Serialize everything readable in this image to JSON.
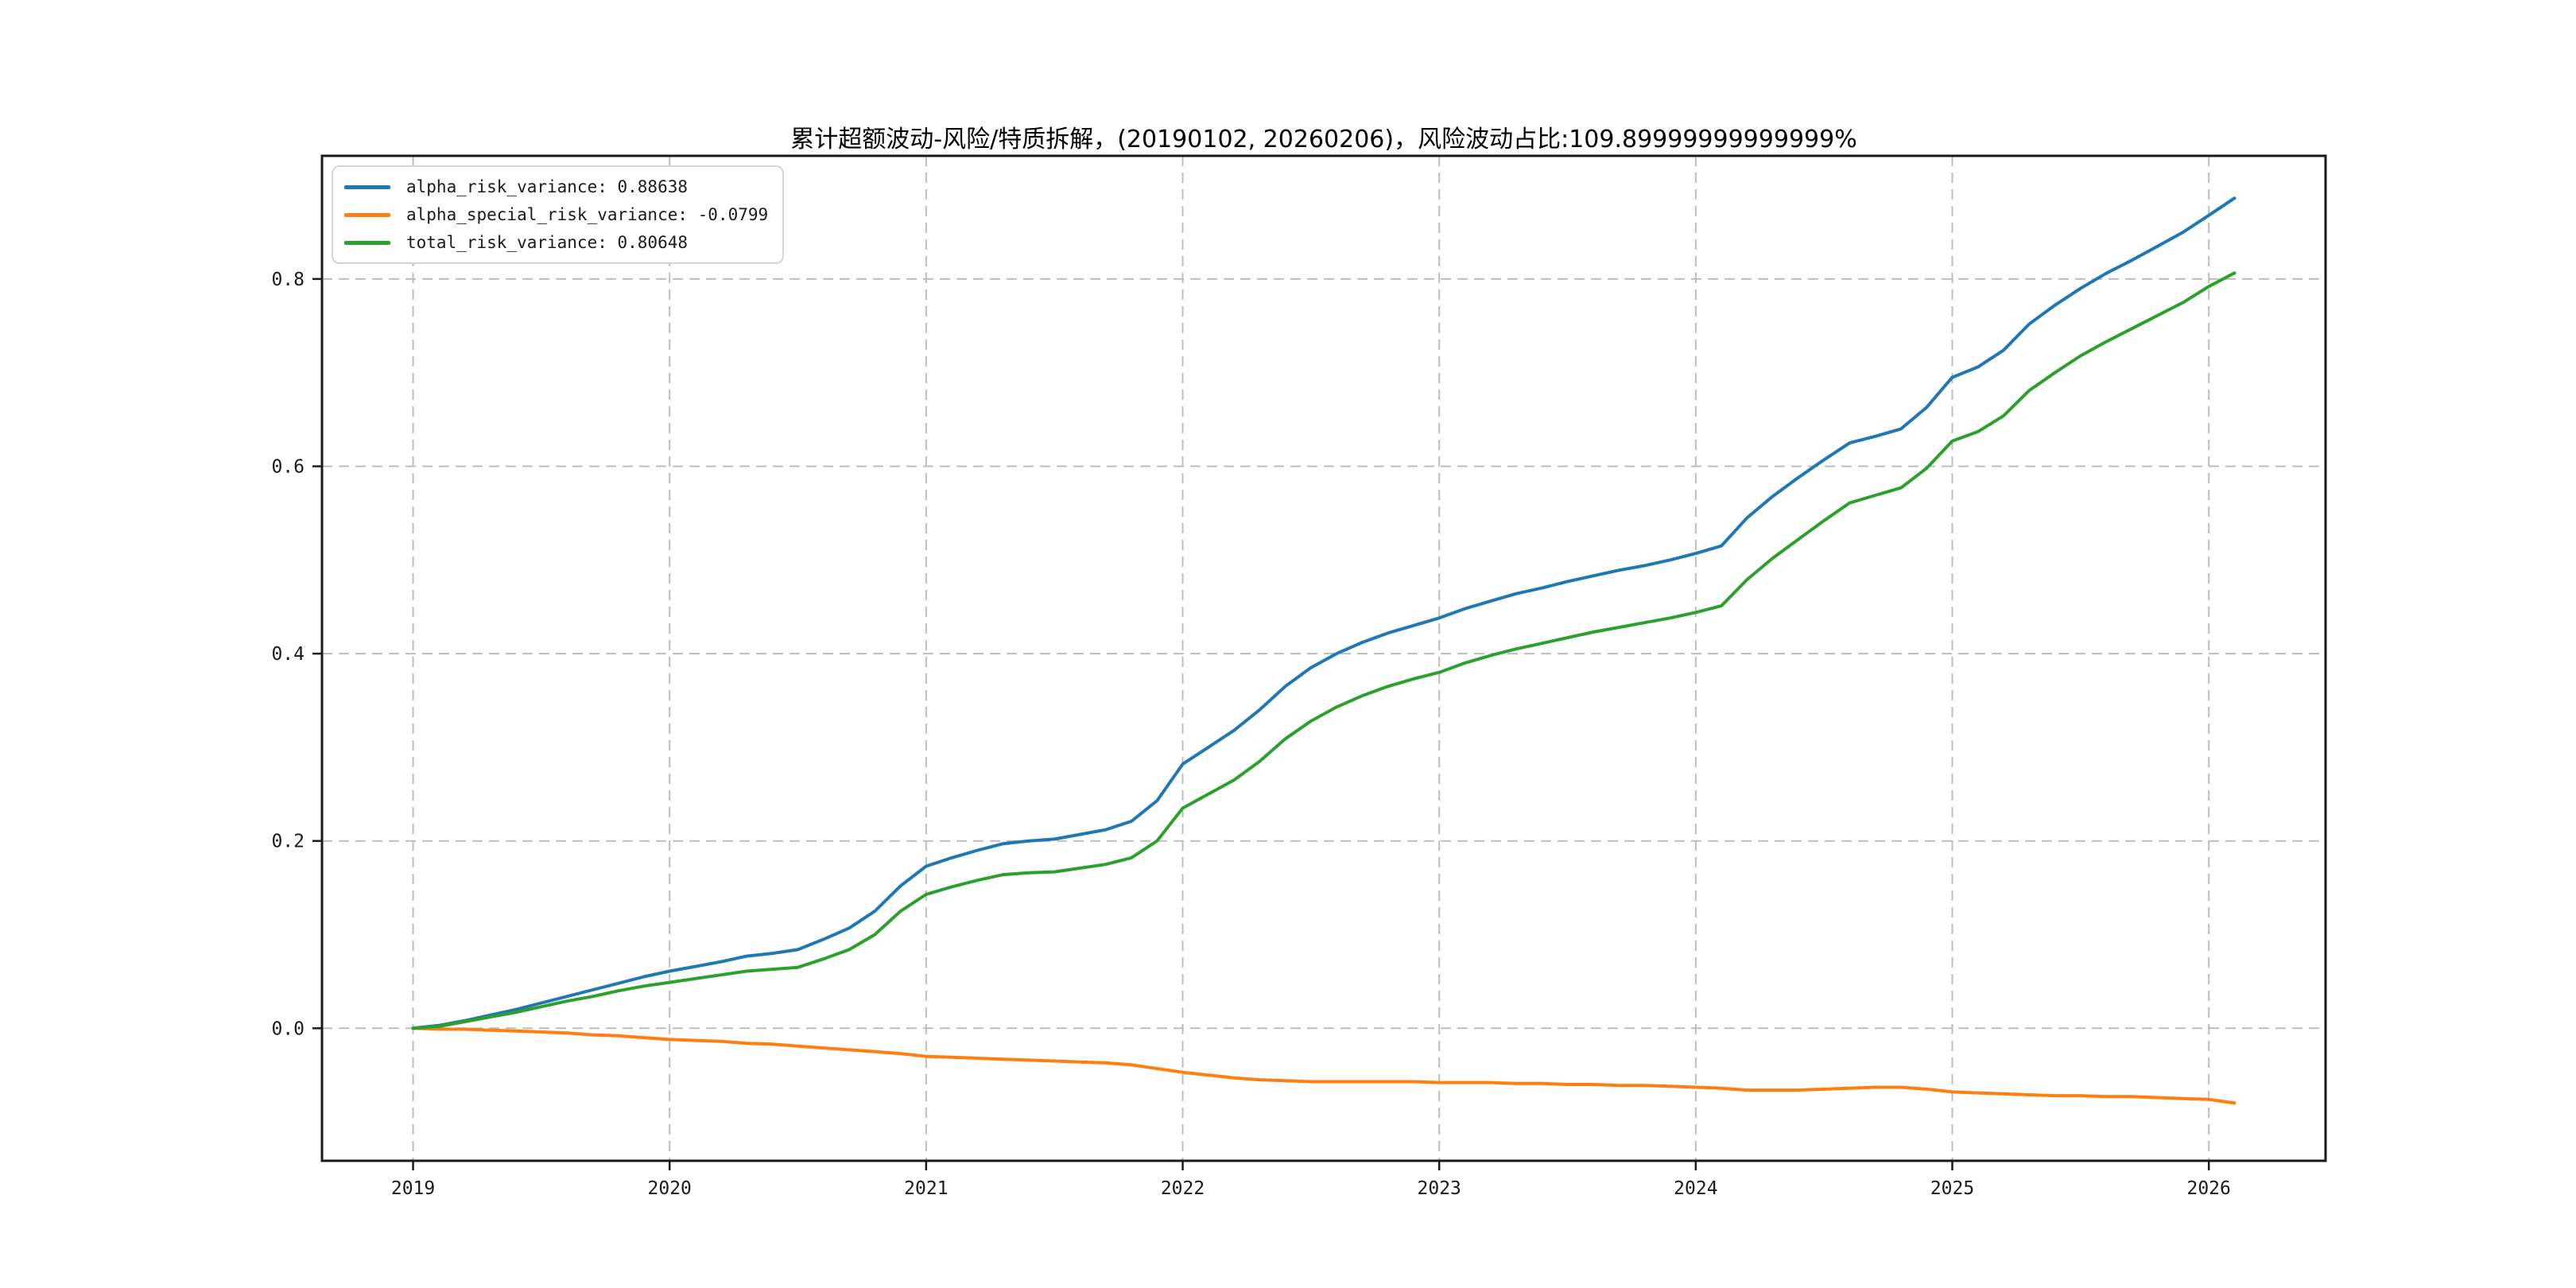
{
  "title": "累计超额波动-风险/特质拆解，(20190102, 20260206)，风险波动占比:109.89999999999999%",
  "legend": {
    "position": "upper left",
    "items": [
      {
        "text": "alpha_risk_variance: 0.88638",
        "color": "#1f77b4"
      },
      {
        "text": "alpha_special_risk_variance: -0.0799",
        "color": "#ff7f0e"
      },
      {
        "text": "total_risk_variance: 0.80648",
        "color": "#2ca02c"
      }
    ]
  },
  "colors": {
    "background": "#ffffff",
    "grid": "#bdbdbd",
    "spine": "#1a1a1a",
    "tick_label": "#1a1a1a"
  },
  "chart_data": {
    "type": "line",
    "title": "累计超额波动-风险/特质拆解，(20190102, 20260206)，风险波动占比:109.89999999999999%",
    "xlabel": "",
    "ylabel": "",
    "date_range_shown_in_title": [
      "20190102",
      "20260206"
    ],
    "x_ticks": [
      2019,
      2020,
      2021,
      2022,
      2023,
      2024,
      2025,
      2026
    ],
    "x_tick_labels": [
      "2019",
      "2020",
      "2021",
      "2022",
      "2023",
      "2024",
      "2025",
      "2026"
    ],
    "y_ticks": [
      0.0,
      0.2,
      0.4,
      0.6,
      0.8
    ],
    "y_tick_labels": [
      "0.0",
      "0.2",
      "0.4",
      "0.6",
      "0.8"
    ],
    "xlim": [
      2018.645,
      2026.455
    ],
    "ylim": [
      -0.1415,
      0.9315
    ],
    "grid": true,
    "grid_style": "dashed",
    "legend_position": "upper left",
    "x": [
      2019.0,
      2019.1,
      2019.2,
      2019.3,
      2019.4,
      2019.5,
      2019.6,
      2019.7,
      2019.8,
      2019.9,
      2020.0,
      2020.1,
      2020.2,
      2020.3,
      2020.4,
      2020.5,
      2020.6,
      2020.7,
      2020.8,
      2020.9,
      2021.0,
      2021.1,
      2021.2,
      2021.3,
      2021.4,
      2021.5,
      2021.6,
      2021.7,
      2021.8,
      2021.9,
      2022.0,
      2022.1,
      2022.2,
      2022.3,
      2022.4,
      2022.5,
      2022.6,
      2022.7,
      2022.8,
      2022.9,
      2023.0,
      2023.1,
      2023.2,
      2023.3,
      2023.4,
      2023.5,
      2023.6,
      2023.7,
      2023.8,
      2023.9,
      2024.0,
      2024.1,
      2024.2,
      2024.3,
      2024.4,
      2024.5,
      2024.6,
      2024.7,
      2024.8,
      2024.9,
      2025.0,
      2025.1,
      2025.2,
      2025.3,
      2025.4,
      2025.5,
      2025.6,
      2025.7,
      2025.8,
      2025.9,
      2026.0,
      2026.1
    ],
    "series": [
      {
        "name": "alpha_risk_variance",
        "final_value": 0.88638,
        "color": "#1f77b4",
        "values": [
          0.0,
          0.003,
          0.008,
          0.014,
          0.02,
          0.027,
          0.034,
          0.041,
          0.048,
          0.055,
          0.061,
          0.066,
          0.071,
          0.077,
          0.08,
          0.084,
          0.095,
          0.107,
          0.125,
          0.152,
          0.173,
          0.182,
          0.19,
          0.197,
          0.2,
          0.202,
          0.207,
          0.212,
          0.221,
          0.243,
          0.282,
          0.3,
          0.318,
          0.34,
          0.365,
          0.385,
          0.4,
          0.412,
          0.422,
          0.43,
          0.438,
          0.448,
          0.456,
          0.464,
          0.47,
          0.477,
          0.483,
          0.489,
          0.494,
          0.5,
          0.507,
          0.515,
          0.545,
          0.568,
          0.588,
          0.607,
          0.625,
          0.632,
          0.64,
          0.663,
          0.695,
          0.706,
          0.724,
          0.752,
          0.772,
          0.79,
          0.806,
          0.82,
          0.835,
          0.85,
          0.868,
          0.88638
        ]
      },
      {
        "name": "alpha_special_risk_variance",
        "final_value": -0.0799,
        "color": "#ff7f0e",
        "values": [
          0.0,
          -0.001,
          -0.001,
          -0.002,
          -0.003,
          -0.004,
          -0.005,
          -0.007,
          -0.008,
          -0.01,
          -0.012,
          -0.013,
          -0.014,
          -0.016,
          -0.017,
          -0.019,
          -0.021,
          -0.023,
          -0.025,
          -0.027,
          -0.03,
          -0.031,
          -0.032,
          -0.033,
          -0.034,
          -0.035,
          -0.036,
          -0.037,
          -0.039,
          -0.043,
          -0.047,
          -0.05,
          -0.053,
          -0.055,
          -0.056,
          -0.057,
          -0.057,
          -0.057,
          -0.057,
          -0.057,
          -0.058,
          -0.058,
          -0.058,
          -0.059,
          -0.059,
          -0.06,
          -0.06,
          -0.061,
          -0.061,
          -0.062,
          -0.063,
          -0.064,
          -0.066,
          -0.066,
          -0.066,
          -0.065,
          -0.064,
          -0.063,
          -0.063,
          -0.065,
          -0.068,
          -0.069,
          -0.07,
          -0.071,
          -0.072,
          -0.072,
          -0.073,
          -0.073,
          -0.074,
          -0.075,
          -0.076,
          -0.0799
        ]
      },
      {
        "name": "total_risk_variance",
        "final_value": 0.80648,
        "color": "#2ca02c",
        "values": [
          0.0,
          0.002,
          0.007,
          0.012,
          0.017,
          0.023,
          0.029,
          0.034,
          0.04,
          0.045,
          0.049,
          0.053,
          0.057,
          0.061,
          0.063,
          0.065,
          0.074,
          0.084,
          0.1,
          0.125,
          0.143,
          0.151,
          0.158,
          0.164,
          0.166,
          0.167,
          0.171,
          0.175,
          0.182,
          0.2,
          0.235,
          0.25,
          0.265,
          0.285,
          0.309,
          0.328,
          0.343,
          0.355,
          0.365,
          0.373,
          0.38,
          0.39,
          0.398,
          0.405,
          0.411,
          0.417,
          0.423,
          0.428,
          0.433,
          0.438,
          0.444,
          0.451,
          0.479,
          0.502,
          0.522,
          0.542,
          0.561,
          0.569,
          0.577,
          0.598,
          0.627,
          0.637,
          0.654,
          0.681,
          0.7,
          0.718,
          0.733,
          0.747,
          0.761,
          0.775,
          0.792,
          0.80648
        ]
      }
    ]
  }
}
